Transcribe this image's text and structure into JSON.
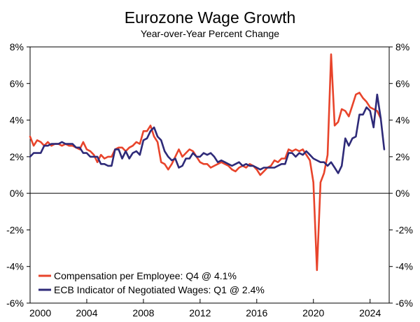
{
  "chart_data": {
    "type": "line",
    "title": "Eurozone Wage Growth",
    "subtitle": "Year-over-Year Percent Change",
    "xlim": [
      2000,
      2025.35
    ],
    "ylim": [
      -6,
      8
    ],
    "x_ticks": [
      2000,
      2004,
      2008,
      2012,
      2016,
      2020,
      2024
    ],
    "x_tick_labels": [
      "2000",
      "2004",
      "2008",
      "2012",
      "2016",
      "2020",
      "2024"
    ],
    "y_ticks": [
      -6,
      -4,
      -2,
      0,
      2,
      4,
      6,
      8
    ],
    "y_tick_labels": [
      "-6%",
      "-4%",
      "-2%",
      "0%",
      "2%",
      "4%",
      "6%",
      "8%"
    ],
    "y_axis_sides": "both",
    "zero_line": true,
    "grid": false,
    "legend_position": "bottom-left",
    "series": [
      {
        "name": "Compensation per Employee: Q4 @ 4.1%",
        "color": "#E8442B",
        "points": [
          [
            2000.0,
            3.1
          ],
          [
            2000.25,
            2.6
          ],
          [
            2000.5,
            2.9
          ],
          [
            2000.75,
            2.8
          ],
          [
            2001.0,
            2.6
          ],
          [
            2001.25,
            2.8
          ],
          [
            2001.5,
            2.6
          ],
          [
            2001.75,
            2.7
          ],
          [
            2002.0,
            2.7
          ],
          [
            2002.25,
            2.6
          ],
          [
            2002.5,
            2.7
          ],
          [
            2002.75,
            2.6
          ],
          [
            2003.0,
            2.6
          ],
          [
            2003.25,
            2.5
          ],
          [
            2003.5,
            2.4
          ],
          [
            2003.75,
            2.8
          ],
          [
            2004.0,
            2.4
          ],
          [
            2004.25,
            2.3
          ],
          [
            2004.5,
            2.1
          ],
          [
            2004.75,
            1.7
          ],
          [
            2005.0,
            2.1
          ],
          [
            2005.25,
            1.9
          ],
          [
            2005.5,
            2.0
          ],
          [
            2005.75,
            2.0
          ],
          [
            2006.0,
            2.4
          ],
          [
            2006.25,
            2.5
          ],
          [
            2006.5,
            2.5
          ],
          [
            2006.75,
            2.3
          ],
          [
            2007.0,
            2.5
          ],
          [
            2007.25,
            2.6
          ],
          [
            2007.5,
            2.8
          ],
          [
            2007.75,
            2.7
          ],
          [
            2008.0,
            3.4
          ],
          [
            2008.25,
            3.4
          ],
          [
            2008.5,
            3.7
          ],
          [
            2008.75,
            3.1
          ],
          [
            2009.0,
            2.8
          ],
          [
            2009.25,
            1.7
          ],
          [
            2009.5,
            1.6
          ],
          [
            2009.75,
            1.3
          ],
          [
            2010.0,
            1.6
          ],
          [
            2010.25,
            2.0
          ],
          [
            2010.5,
            2.4
          ],
          [
            2010.75,
            2.0
          ],
          [
            2011.0,
            2.2
          ],
          [
            2011.25,
            2.4
          ],
          [
            2011.5,
            2.3
          ],
          [
            2011.75,
            2.0
          ],
          [
            2012.0,
            1.7
          ],
          [
            2012.25,
            1.6
          ],
          [
            2012.5,
            1.6
          ],
          [
            2012.75,
            1.4
          ],
          [
            2013.0,
            1.5
          ],
          [
            2013.25,
            1.6
          ],
          [
            2013.5,
            1.7
          ],
          [
            2013.75,
            1.6
          ],
          [
            2014.0,
            1.5
          ],
          [
            2014.25,
            1.3
          ],
          [
            2014.5,
            1.2
          ],
          [
            2014.75,
            1.4
          ],
          [
            2015.0,
            1.5
          ],
          [
            2015.25,
            1.4
          ],
          [
            2015.5,
            1.6
          ],
          [
            2015.75,
            1.5
          ],
          [
            2016.0,
            1.3
          ],
          [
            2016.25,
            1.0
          ],
          [
            2016.5,
            1.2
          ],
          [
            2016.75,
            1.4
          ],
          [
            2017.0,
            1.5
          ],
          [
            2017.25,
            1.8
          ],
          [
            2017.5,
            1.7
          ],
          [
            2017.75,
            1.9
          ],
          [
            2018.0,
            1.9
          ],
          [
            2018.25,
            2.4
          ],
          [
            2018.5,
            2.3
          ],
          [
            2018.75,
            2.4
          ],
          [
            2019.0,
            2.3
          ],
          [
            2019.25,
            2.4
          ],
          [
            2019.5,
            2.1
          ],
          [
            2019.75,
            1.8
          ],
          [
            2020.0,
            0.6
          ],
          [
            2020.25,
            -4.2
          ],
          [
            2020.5,
            0.6
          ],
          [
            2020.75,
            1.1
          ],
          [
            2021.0,
            2.1
          ],
          [
            2021.25,
            7.6
          ],
          [
            2021.5,
            3.7
          ],
          [
            2021.75,
            3.9
          ],
          [
            2022.0,
            4.6
          ],
          [
            2022.25,
            4.5
          ],
          [
            2022.5,
            4.2
          ],
          [
            2022.75,
            4.8
          ],
          [
            2023.0,
            5.4
          ],
          [
            2023.25,
            5.5
          ],
          [
            2023.5,
            5.2
          ],
          [
            2023.75,
            5.0
          ],
          [
            2024.0,
            4.7
          ],
          [
            2024.25,
            4.6
          ],
          [
            2024.5,
            4.5
          ],
          [
            2024.75,
            4.1
          ]
        ]
      },
      {
        "name": "ECB Indicator of Negotiated Wages: Q1 @ 2.4%",
        "color": "#2E2A78",
        "points": [
          [
            2000.0,
            2.0
          ],
          [
            2000.25,
            2.2
          ],
          [
            2000.5,
            2.2
          ],
          [
            2000.75,
            2.2
          ],
          [
            2001.0,
            2.6
          ],
          [
            2001.25,
            2.6
          ],
          [
            2001.5,
            2.7
          ],
          [
            2001.75,
            2.7
          ],
          [
            2002.0,
            2.7
          ],
          [
            2002.25,
            2.8
          ],
          [
            2002.5,
            2.7
          ],
          [
            2002.75,
            2.7
          ],
          [
            2003.0,
            2.7
          ],
          [
            2003.25,
            2.5
          ],
          [
            2003.5,
            2.5
          ],
          [
            2003.75,
            2.2
          ],
          [
            2004.0,
            2.2
          ],
          [
            2004.25,
            2.0
          ],
          [
            2004.5,
            2.0
          ],
          [
            2004.75,
            2.0
          ],
          [
            2005.0,
            1.6
          ],
          [
            2005.25,
            1.6
          ],
          [
            2005.5,
            1.5
          ],
          [
            2005.75,
            1.5
          ],
          [
            2006.0,
            2.4
          ],
          [
            2006.25,
            2.4
          ],
          [
            2006.5,
            1.9
          ],
          [
            2006.75,
            2.3
          ],
          [
            2007.0,
            1.9
          ],
          [
            2007.25,
            2.2
          ],
          [
            2007.5,
            2.3
          ],
          [
            2007.75,
            2.1
          ],
          [
            2008.0,
            2.9
          ],
          [
            2008.25,
            3.0
          ],
          [
            2008.5,
            3.4
          ],
          [
            2008.75,
            3.6
          ],
          [
            2009.0,
            3.1
          ],
          [
            2009.25,
            2.9
          ],
          [
            2009.5,
            2.3
          ],
          [
            2009.75,
            2.0
          ],
          [
            2010.0,
            1.8
          ],
          [
            2010.25,
            1.9
          ],
          [
            2010.5,
            1.4
          ],
          [
            2010.75,
            1.5
          ],
          [
            2011.0,
            1.9
          ],
          [
            2011.25,
            1.9
          ],
          [
            2011.5,
            2.2
          ],
          [
            2011.75,
            2.0
          ],
          [
            2012.0,
            2.0
          ],
          [
            2012.25,
            2.2
          ],
          [
            2012.5,
            2.1
          ],
          [
            2012.75,
            2.2
          ],
          [
            2013.0,
            2.0
          ],
          [
            2013.25,
            1.7
          ],
          [
            2013.5,
            1.8
          ],
          [
            2013.75,
            1.7
          ],
          [
            2014.0,
            1.6
          ],
          [
            2014.25,
            1.5
          ],
          [
            2014.5,
            1.6
          ],
          [
            2014.75,
            1.7
          ],
          [
            2015.0,
            1.5
          ],
          [
            2015.25,
            1.6
          ],
          [
            2015.5,
            1.5
          ],
          [
            2015.75,
            1.5
          ],
          [
            2016.0,
            1.4
          ],
          [
            2016.25,
            1.3
          ],
          [
            2016.5,
            1.4
          ],
          [
            2016.75,
            1.4
          ],
          [
            2017.0,
            1.4
          ],
          [
            2017.25,
            1.4
          ],
          [
            2017.5,
            1.5
          ],
          [
            2017.75,
            1.6
          ],
          [
            2018.0,
            1.6
          ],
          [
            2018.25,
            2.2
          ],
          [
            2018.5,
            2.2
          ],
          [
            2018.75,
            2.0
          ],
          [
            2019.0,
            2.2
          ],
          [
            2019.25,
            2.1
          ],
          [
            2019.5,
            2.3
          ],
          [
            2019.75,
            2.1
          ],
          [
            2020.0,
            1.9
          ],
          [
            2020.25,
            1.8
          ],
          [
            2020.5,
            1.7
          ],
          [
            2020.75,
            1.7
          ],
          [
            2021.0,
            1.5
          ],
          [
            2021.25,
            1.7
          ],
          [
            2021.5,
            1.4
          ],
          [
            2021.75,
            1.1
          ],
          [
            2022.0,
            1.5
          ],
          [
            2022.25,
            3.0
          ],
          [
            2022.5,
            2.6
          ],
          [
            2022.75,
            3.0
          ],
          [
            2023.0,
            3.1
          ],
          [
            2023.25,
            4.3
          ],
          [
            2023.5,
            4.3
          ],
          [
            2023.75,
            4.7
          ],
          [
            2024.0,
            4.5
          ],
          [
            2024.25,
            3.6
          ],
          [
            2024.5,
            5.4
          ],
          [
            2024.75,
            4.1
          ],
          [
            2025.0,
            2.4
          ]
        ]
      }
    ]
  }
}
